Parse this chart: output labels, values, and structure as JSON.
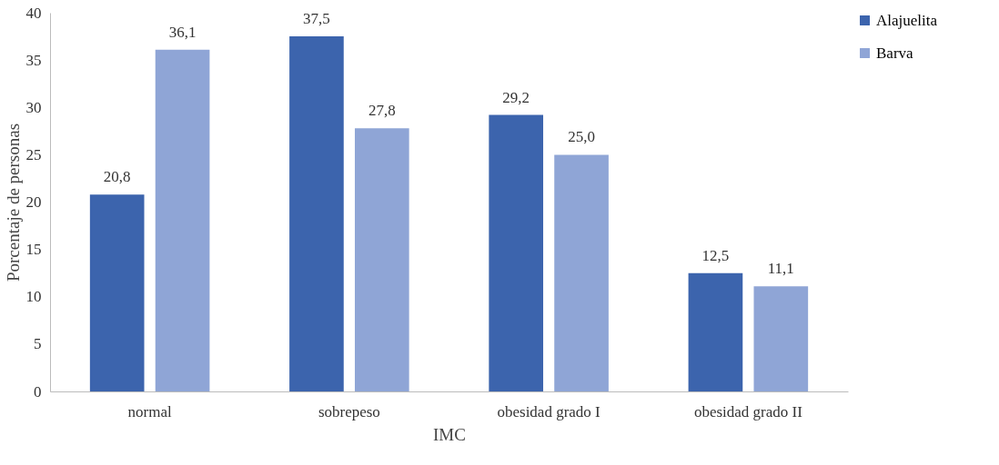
{
  "chart_data": {
    "type": "bar",
    "xlabel": "IMC",
    "ylabel": "Porcentaje de personas",
    "categories": [
      "normal",
      "sobrepeso",
      "obesidad grado I",
      "obesidad grado II"
    ],
    "series": [
      {
        "name": "Alajuelita",
        "color": "#3c64ad",
        "values": [
          20.8,
          37.5,
          29.2,
          12.5
        ],
        "value_labels": [
          "20,8",
          "37,5",
          "29,2",
          "12,5"
        ]
      },
      {
        "name": "Barva",
        "color": "#8fa5d6",
        "values": [
          36.1,
          27.8,
          25.0,
          11.1
        ],
        "value_labels": [
          "36,1",
          "27,8",
          "25,0",
          "11,1"
        ]
      }
    ],
    "ylim": [
      0,
      40
    ],
    "yticks": [
      0,
      5,
      10,
      15,
      20,
      25,
      30,
      35,
      40
    ],
    "grid": false,
    "legend": "right"
  }
}
